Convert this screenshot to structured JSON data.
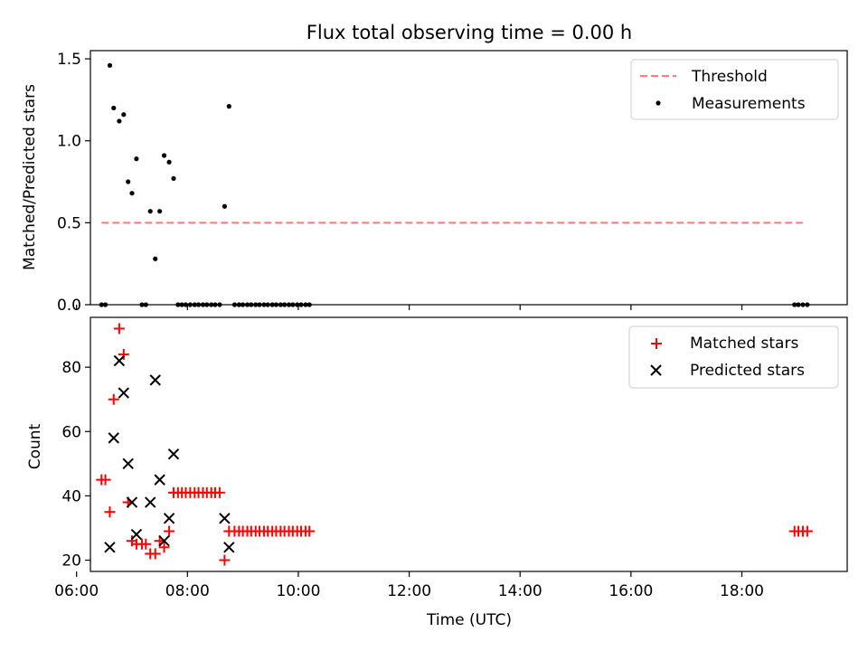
{
  "figure": {
    "title": "Flux total observing time = 0.00 h"
  },
  "chart_data": [
    {
      "type": "scatter",
      "ylabel": "Matched/Predicted stars",
      "xlim": [
        6.25,
        19.9
      ],
      "ylim": [
        0,
        1.55
      ],
      "yticks": [
        0.0,
        0.5,
        1.0,
        1.5
      ],
      "ytick_labels": [
        "0.0",
        "0.5",
        "1.0",
        "1.5"
      ],
      "xticks": [
        6,
        8,
        10,
        12,
        14,
        16,
        18
      ],
      "legend_position": "top-right",
      "threshold": {
        "name": "Threshold",
        "value": 0.5,
        "x_range": [
          6.45,
          19.1
        ],
        "color": "#ff7a7a"
      },
      "series": [
        {
          "name": "Measurements",
          "color": "#000000",
          "x": [
            6.45,
            6.52,
            6.6,
            6.67,
            6.77,
            6.85,
            6.93,
            7.0,
            7.08,
            7.18,
            7.25,
            7.33,
            7.42,
            7.5,
            7.58,
            7.67,
            7.75,
            7.83,
            7.9,
            7.97,
            8.05,
            8.13,
            8.2,
            8.28,
            8.35,
            8.43,
            8.5,
            8.58,
            8.67,
            8.75,
            8.85,
            8.93,
            9.0,
            9.08,
            9.15,
            9.23,
            9.3,
            9.38,
            9.45,
            9.53,
            9.6,
            9.68,
            9.75,
            9.83,
            9.9,
            9.98,
            10.05,
            10.13,
            10.2,
            18.95,
            19.02,
            19.1,
            19.18
          ],
          "y": [
            0.0,
            0.0,
            1.46,
            1.2,
            1.12,
            1.16,
            0.75,
            0.68,
            0.89,
            0.0,
            0.0,
            0.57,
            0.28,
            0.57,
            0.91,
            0.87,
            0.77,
            0.0,
            0.0,
            0.0,
            0.0,
            0.0,
            0.0,
            0.0,
            0.0,
            0.0,
            0.0,
            0.0,
            0.6,
            1.21,
            0.0,
            0.0,
            0.0,
            0.0,
            0.0,
            0.0,
            0.0,
            0.0,
            0.0,
            0.0,
            0.0,
            0.0,
            0.0,
            0.0,
            0.0,
            0.0,
            0.0,
            0.0,
            0.0,
            0.0,
            0.0,
            0.0,
            0.0
          ]
        }
      ]
    },
    {
      "type": "scatter",
      "xlabel": "Time (UTC)",
      "ylabel": "Count",
      "xlim": [
        6.25,
        19.9
      ],
      "ylim": [
        16.5,
        95.5
      ],
      "yticks": [
        20,
        40,
        60,
        80
      ],
      "ytick_labels": [
        "20",
        "40",
        "60",
        "80"
      ],
      "xticks": [
        6,
        8,
        10,
        12,
        14,
        16,
        18
      ],
      "xtick_labels": [
        "06:00",
        "08:00",
        "10:00",
        "12:00",
        "14:00",
        "16:00",
        "18:00"
      ],
      "legend_position": "top-right",
      "series": [
        {
          "name": "Matched stars",
          "marker": "+",
          "color": "#ff0000",
          "x": [
            6.45,
            6.52,
            6.6,
            6.67,
            6.77,
            6.85,
            6.93,
            7.0,
            7.08,
            7.18,
            7.25,
            7.33,
            7.42,
            7.5,
            7.58,
            7.67,
            7.75,
            7.83,
            7.9,
            7.97,
            8.05,
            8.13,
            8.2,
            8.28,
            8.35,
            8.43,
            8.5,
            8.58,
            8.67,
            8.75,
            8.85,
            8.93,
            9.0,
            9.08,
            9.15,
            9.23,
            9.3,
            9.38,
            9.45,
            9.53,
            9.6,
            9.68,
            9.75,
            9.83,
            9.9,
            9.98,
            10.05,
            10.13,
            10.2,
            18.95,
            19.02,
            19.1,
            19.18
          ],
          "y": [
            45,
            45,
            35,
            70,
            92,
            84,
            38,
            26,
            25,
            25,
            25,
            22,
            22,
            26,
            24,
            29,
            41,
            41,
            41,
            41,
            41,
            41,
            41,
            41,
            41,
            41,
            41,
            41,
            20,
            29,
            29,
            29,
            29,
            29,
            29,
            29,
            29,
            29,
            29,
            29,
            29,
            29,
            29,
            29,
            29,
            29,
            29,
            29,
            29,
            29,
            29,
            29,
            29
          ]
        },
        {
          "name": "Predicted stars",
          "marker": "x",
          "color": "#000000",
          "x": [
            6.6,
            6.67,
            6.77,
            6.85,
            6.93,
            7.0,
            7.08,
            7.33,
            7.42,
            7.5,
            7.58,
            7.67,
            7.75,
            8.67,
            8.75
          ],
          "y": [
            24,
            58,
            82,
            72,
            50,
            38,
            28,
            38,
            76,
            45,
            26,
            33,
            53,
            33,
            24
          ]
        }
      ]
    }
  ]
}
